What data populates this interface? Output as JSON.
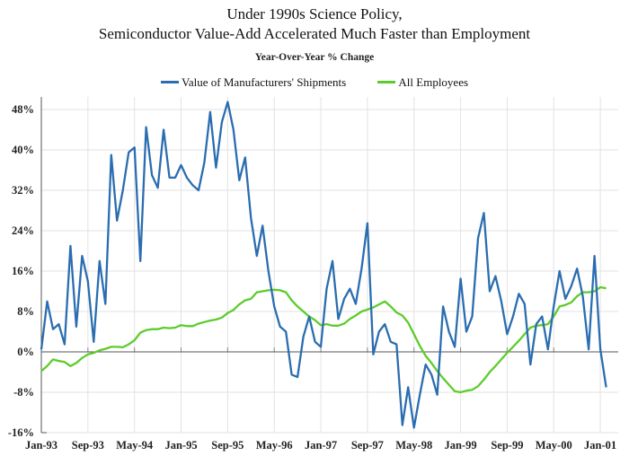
{
  "chart_data": {
    "type": "line",
    "title": "Under 1990s Science Policy,",
    "title_line2": "Semiconductor Value-Add Accelerated Much Faster than Employment",
    "subtitle": "Year-Over-Year % Change",
    "x_start": "1993-01",
    "x_step": "month",
    "x_tick_labels": [
      "Jan-93",
      "Sep-93",
      "May-94",
      "Jan-95",
      "Sep-95",
      "May-96",
      "Jan-97",
      "Sep-97",
      "May-98",
      "Jan-99",
      "Sep-99",
      "May-00",
      "Jan-01"
    ],
    "y_tick_labels": [
      "-16%",
      "-8%",
      "0%",
      "8%",
      "16%",
      "24%",
      "32%",
      "40%",
      "48%"
    ],
    "ylim": [
      -16,
      50
    ],
    "grid": true,
    "legend_position": "top-center",
    "series": [
      {
        "name": "Value of Manufacturers' Shipments",
        "color": "#2a6db0",
        "values": [
          0.5,
          10,
          4.5,
          5.5,
          1.5,
          21,
          5,
          19,
          14,
          2,
          18,
          9.5,
          39,
          26,
          32,
          39.5,
          40.5,
          18,
          44.5,
          35,
          32.5,
          44,
          34.5,
          34.5,
          37,
          34.5,
          33,
          32,
          37.5,
          47.5,
          36.5,
          45.5,
          49.5,
          44,
          34,
          38.5,
          26.5,
          19,
          25,
          16,
          9,
          5,
          4,
          -4.5,
          -5,
          3,
          7,
          2,
          1,
          12.5,
          18,
          6.5,
          10.5,
          12.5,
          9.5,
          16.5,
          25.5,
          -0.5,
          4,
          5.5,
          2,
          1.5,
          -14.5,
          -7,
          -15,
          -8.5,
          -2.5,
          -4.5,
          -8.5,
          9,
          4,
          1,
          14.5,
          4,
          7,
          22.5,
          27.5,
          12,
          15,
          10,
          3.5,
          7,
          11.5,
          9.5,
          -2.5,
          5.5,
          7,
          0.5,
          9,
          16,
          10.5,
          13,
          16.5,
          11,
          0.5,
          19,
          0.5,
          -7
        ]
      },
      {
        "name": "All Employees",
        "color": "#5ccc2c",
        "values": [
          -3.8,
          -2.8,
          -1.5,
          -1.8,
          -2,
          -2.8,
          -2.2,
          -1.2,
          -0.5,
          -0.2,
          0.3,
          0.6,
          1,
          1,
          0.9,
          1.5,
          2.3,
          3.8,
          4.3,
          4.5,
          4.5,
          4.8,
          4.7,
          4.8,
          5.3,
          5.1,
          5.1,
          5.6,
          5.9,
          6.2,
          6.4,
          6.8,
          7.7,
          8.3,
          9.4,
          10.2,
          10.5,
          11.8,
          12,
          12.2,
          12.3,
          12.2,
          11.8,
          10.2,
          9,
          8,
          7,
          6.3,
          5.3,
          5.5,
          5.2,
          5.2,
          5.6,
          6.5,
          7.2,
          8,
          8.4,
          8.8,
          9.4,
          10,
          9,
          7.8,
          7.2,
          5.8,
          3.5,
          1.2,
          -0.8,
          -2.2,
          -3.8,
          -5.2,
          -6.5,
          -7.8,
          -8,
          -7.7,
          -7.5,
          -6.8,
          -5.5,
          -4,
          -2.8,
          -1.5,
          -0.2,
          1,
          2.2,
          3.5,
          4.8,
          5.2,
          5.3,
          5.5,
          7,
          9,
          9.3,
          9.8,
          11,
          11.8,
          11.8,
          12,
          12.8,
          12.6
        ]
      }
    ]
  }
}
